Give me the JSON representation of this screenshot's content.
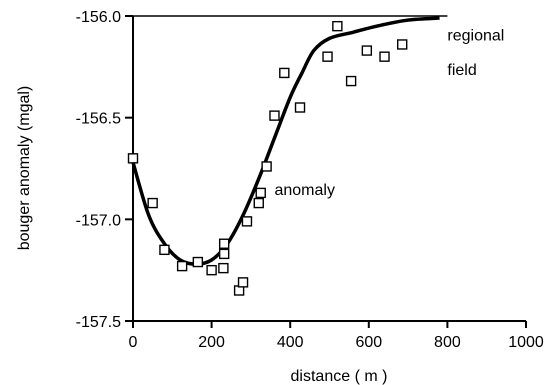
{
  "chart_data": {
    "type": "scatter",
    "title": "",
    "xlabel": "distance ( m )",
    "ylabel": "bouger anomaly  (mgal)",
    "xlim": [
      0,
      1000
    ],
    "ylim": [
      -157.5,
      -156.0
    ],
    "x_ticks": [
      0,
      200,
      400,
      600,
      800,
      1000
    ],
    "y_ticks": [
      -156.0,
      -156.5,
      -157.0,
      -157.5
    ],
    "x_tick_labels": [
      "0",
      "200",
      "400",
      "600",
      "800",
      "1000"
    ],
    "y_tick_labels": [
      "-156.0",
      "-156.5",
      "-157.0",
      "-157.5"
    ],
    "grid": false,
    "series": [
      {
        "type": "scatter",
        "marker": "open-square",
        "points": [
          [
            0,
            -156.7
          ],
          [
            50,
            -156.92
          ],
          [
            80,
            -157.15
          ],
          [
            125,
            -157.23
          ],
          [
            165,
            -157.21
          ],
          [
            200,
            -157.25
          ],
          [
            230,
            -157.24
          ],
          [
            232,
            -157.17
          ],
          [
            232,
            -157.12
          ],
          [
            270,
            -157.35
          ],
          [
            280,
            -157.31
          ],
          [
            290,
            -157.01
          ],
          [
            320,
            -156.92
          ],
          [
            325,
            -156.87
          ],
          [
            340,
            -156.74
          ],
          [
            360,
            -156.49
          ],
          [
            385,
            -156.28
          ],
          [
            425,
            -156.45
          ],
          [
            495,
            -156.2
          ],
          [
            520,
            -156.05
          ],
          [
            555,
            -156.32
          ],
          [
            595,
            -156.17
          ],
          [
            640,
            -156.2
          ],
          [
            685,
            -156.14
          ]
        ]
      },
      {
        "type": "line",
        "points": [
          [
            0,
            -156.72
          ],
          [
            40,
            -156.98
          ],
          [
            80,
            -157.12
          ],
          [
            120,
            -157.2
          ],
          [
            160,
            -157.22
          ],
          [
            200,
            -157.2
          ],
          [
            240,
            -157.12
          ],
          [
            280,
            -156.98
          ],
          [
            320,
            -156.8
          ],
          [
            360,
            -156.6
          ],
          [
            400,
            -156.4
          ],
          [
            430,
            -156.28
          ],
          [
            460,
            -156.17
          ],
          [
            500,
            -156.11
          ],
          [
            560,
            -156.08
          ],
          [
            620,
            -156.05
          ],
          [
            700,
            -156.02
          ],
          [
            780,
            -156.01
          ]
        ]
      }
    ],
    "annotations": [
      {
        "text": "anomaly",
        "x": 360,
        "y": -156.85
      },
      {
        "text": "regional",
        "x": 800,
        "y": -156.09
      },
      {
        "text": "field",
        "x": 800,
        "y": -156.26
      }
    ],
    "colors": {
      "line": "#000000",
      "marker": "#000000",
      "background": "#ffffff"
    }
  }
}
